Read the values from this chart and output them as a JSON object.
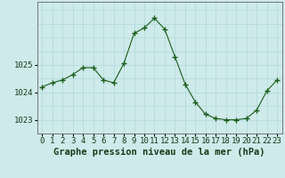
{
  "hours": [
    0,
    1,
    2,
    3,
    4,
    5,
    6,
    7,
    8,
    9,
    10,
    11,
    12,
    13,
    14,
    15,
    16,
    17,
    18,
    19,
    20,
    21,
    22,
    23
  ],
  "pressure": [
    1024.2,
    1024.35,
    1024.45,
    1024.65,
    1024.9,
    1024.9,
    1024.45,
    1024.35,
    1025.05,
    1026.15,
    1026.35,
    1026.7,
    1026.3,
    1025.3,
    1024.3,
    1023.65,
    1023.2,
    1023.05,
    1023.0,
    1023.0,
    1023.05,
    1023.35,
    1024.05,
    1024.45
  ],
  "line_color": "#1a5e1a",
  "marker": "+",
  "marker_size": 4,
  "marker_linewidth": 1.0,
  "line_width": 0.8,
  "background_color": "#ceeaea",
  "grid_color": "#b0d8d8",
  "xlabel": "Graphe pression niveau de la mer (hPa)",
  "xlabel_fontsize": 7.5,
  "ylabel_ticks": [
    1023,
    1024,
    1025
  ],
  "xtick_labels": [
    "0",
    "1",
    "2",
    "3",
    "4",
    "5",
    "6",
    "7",
    "8",
    "9",
    "10",
    "11",
    "12",
    "13",
    "14",
    "15",
    "16",
    "17",
    "18",
    "19",
    "20",
    "21",
    "22",
    "23"
  ],
  "xlim": [
    -0.5,
    23.5
  ],
  "ylim": [
    1022.5,
    1027.3
  ],
  "tick_fontsize": 6.5,
  "spine_color": "#666666"
}
